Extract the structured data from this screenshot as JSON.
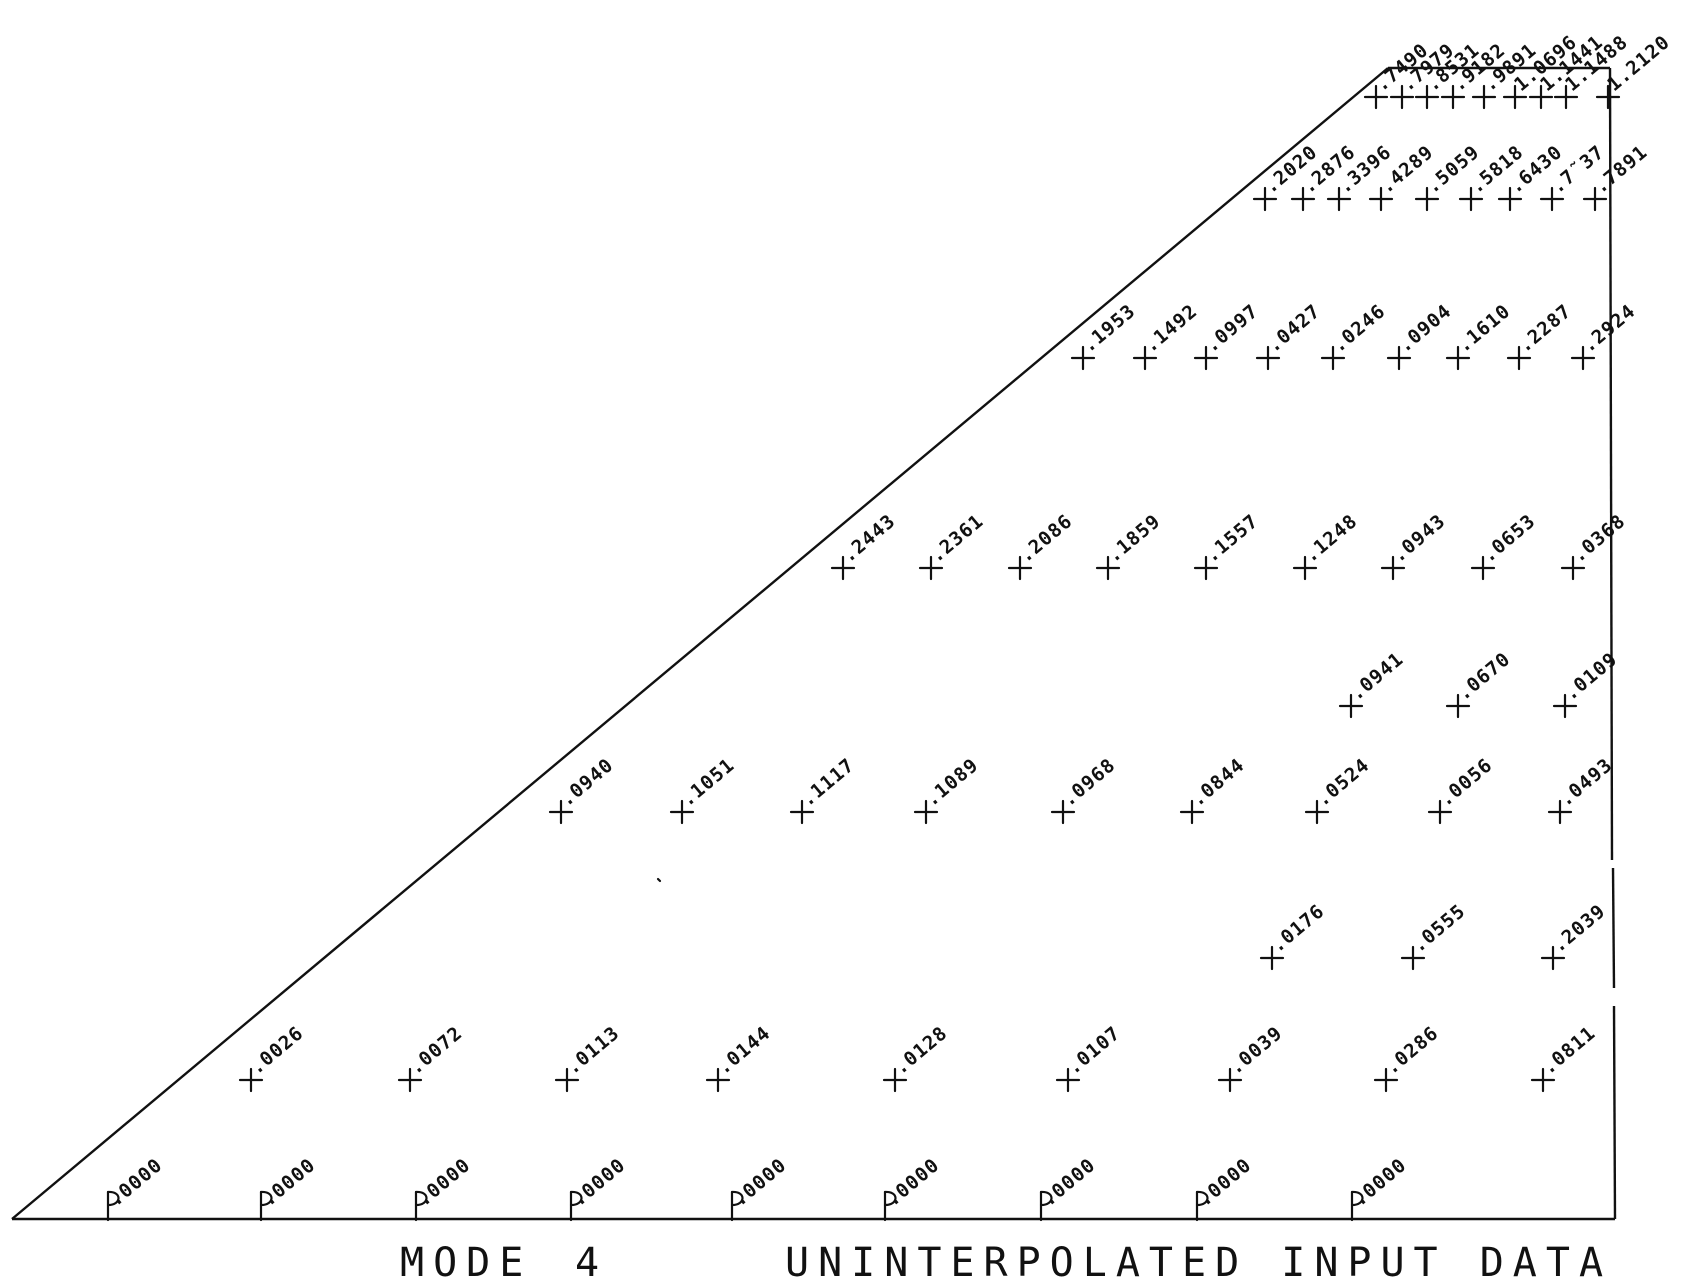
{
  "caption": {
    "mode_label": "MODE",
    "mode_number": "4",
    "title": "UNINTERPOLATED INPUT DATA"
  },
  "colors": {
    "ink": "#111111",
    "background": "#ffffff"
  },
  "rows": [
    {
      "values": [
        ".0000",
        ".0000",
        ".0000",
        ".0000",
        ".0000",
        ".0000",
        ".0000",
        ".0000",
        ".0000"
      ]
    },
    {
      "values": [
        ".0026",
        ".0072",
        ".0113",
        ".0144",
        ".0128",
        ".0107",
        ".0039",
        ".0286",
        ".0811"
      ]
    },
    {
      "values": [
        ".0176",
        ".0555",
        ".2039"
      ]
    },
    {
      "values": [
        ".0940",
        ".1051",
        ".1117",
        ".1089",
        ".0968",
        ".0844",
        ".0524",
        ".0056",
        ".0493"
      ]
    },
    {
      "values": [
        ".0941",
        ".0670",
        ".0109"
      ]
    },
    {
      "values": [
        ".2443",
        ".2361",
        ".2086",
        ".1859",
        ".1557",
        ".1248",
        ".0943",
        ".0653",
        ".0368"
      ]
    },
    {
      "values": [
        ".1953",
        ".1492",
        ".0997",
        ".0427",
        ".0246",
        ".0904",
        ".1610",
        ".2287",
        ".2924"
      ]
    },
    {
      "values": [
        ".2020",
        ".2876",
        ".3396",
        ".4289",
        ".5059",
        ".5818",
        ".6430",
        ".7˜37",
        ".7891"
      ]
    },
    {
      "values": [
        ".7490",
        ".7979",
        ".8531",
        ".9182",
        ".9891",
        "1.0696",
        "1.1441",
        "1.1488",
        "1.2120"
      ]
    }
  ]
}
